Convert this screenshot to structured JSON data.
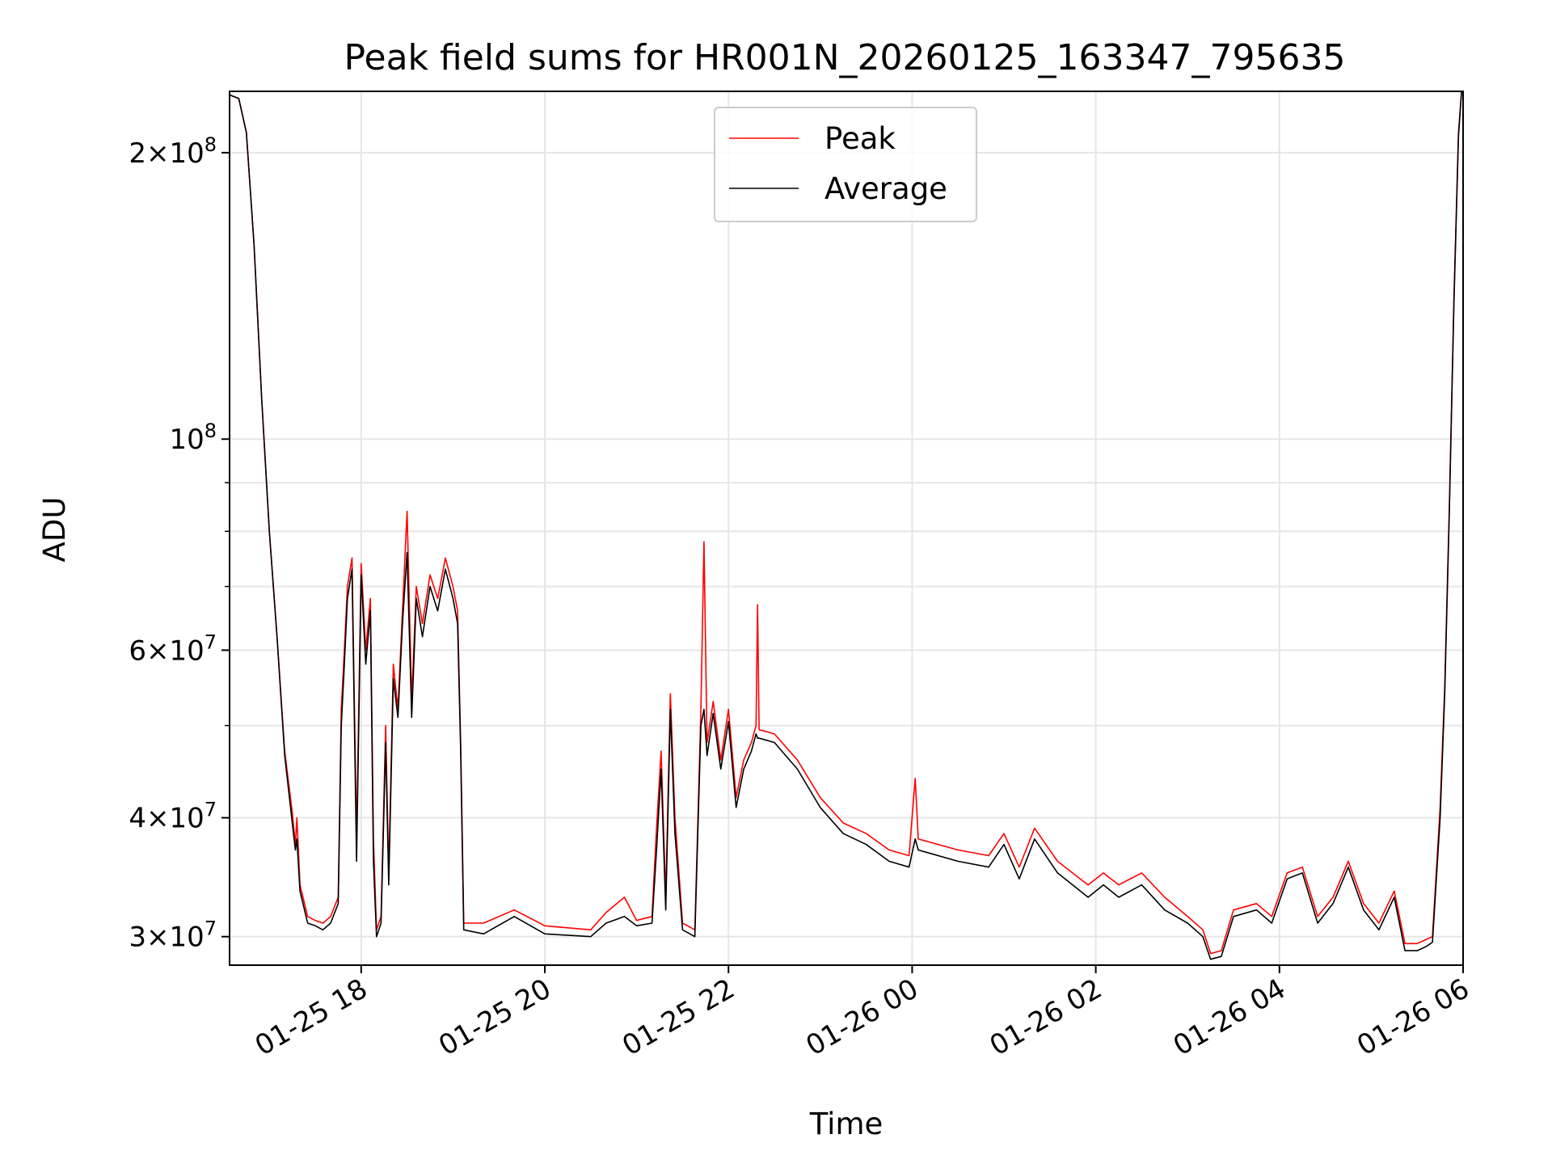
{
  "chart_data": {
    "type": "line",
    "title": "Peak field sums for HR001N_20260125_163347_795635",
    "xlabel": "Time",
    "ylabel": "ADU",
    "yscale": "log",
    "ylim": [
      28000000,
      232000000
    ],
    "xlim": [
      "2026-01-25 16:34",
      "2026-01-26 06:00"
    ],
    "grid": true,
    "legend_position": "upper center",
    "x_ticks": [
      {
        "t": "2026-01-25 18:00",
        "label": "01-25 18"
      },
      {
        "t": "2026-01-25 20:00",
        "label": "01-25 20"
      },
      {
        "t": "2026-01-25 22:00",
        "label": "01-25 22"
      },
      {
        "t": "2026-01-26 00:00",
        "label": "01-26 00"
      },
      {
        "t": "2026-01-26 02:00",
        "label": "01-26 02"
      },
      {
        "t": "2026-01-26 04:00",
        "label": "01-26 04"
      },
      {
        "t": "2026-01-26 06:00",
        "label": "01-26 06"
      }
    ],
    "y_ticks": [
      {
        "value": 30000000,
        "label_base": "3×10",
        "label_exp": "7"
      },
      {
        "value": 40000000,
        "label_base": "4×10",
        "label_exp": "7"
      },
      {
        "value": 60000000,
        "label_base": "6×10",
        "label_exp": "7"
      },
      {
        "value": 100000000,
        "label_base": "10",
        "label_exp": "8"
      },
      {
        "value": 200000000,
        "label_base": "2×10",
        "label_exp": "8"
      }
    ],
    "y_minor": [
      50000000,
      70000000,
      80000000,
      90000000
    ],
    "series": [
      {
        "name": "Peak",
        "color": "#ff0000",
        "points": [
          [
            "2026-01-25 16:34",
            230000000
          ],
          [
            "2026-01-25 16:40",
            228000000
          ],
          [
            "2026-01-25 16:45",
            210000000
          ],
          [
            "2026-01-25 16:50",
            160000000
          ],
          [
            "2026-01-25 16:55",
            110000000
          ],
          [
            "2026-01-25 17:00",
            80000000
          ],
          [
            "2026-01-25 17:05",
            62000000
          ],
          [
            "2026-01-25 17:10",
            47000000
          ],
          [
            "2026-01-25 17:15",
            40500000
          ],
          [
            "2026-01-25 17:17",
            37500000
          ],
          [
            "2026-01-25 17:18",
            40000000
          ],
          [
            "2026-01-25 17:20",
            34000000
          ],
          [
            "2026-01-25 17:25",
            31500000
          ],
          [
            "2026-01-25 17:30",
            31200000
          ],
          [
            "2026-01-25 17:35",
            31000000
          ],
          [
            "2026-01-25 17:40",
            31500000
          ],
          [
            "2026-01-25 17:45",
            33000000
          ],
          [
            "2026-01-25 17:47",
            52000000
          ],
          [
            "2026-01-25 17:49",
            60000000
          ],
          [
            "2026-01-25 17:51",
            70000000
          ],
          [
            "2026-01-25 17:54",
            75000000
          ],
          [
            "2026-01-25 17:57",
            38000000
          ],
          [
            "2026-01-25 18:00",
            74000000
          ],
          [
            "2026-01-25 18:03",
            60000000
          ],
          [
            "2026-01-25 18:06",
            68000000
          ],
          [
            "2026-01-25 18:08",
            38000000
          ],
          [
            "2026-01-25 18:10",
            30500000
          ],
          [
            "2026-01-25 18:13",
            31500000
          ],
          [
            "2026-01-25 18:16",
            50000000
          ],
          [
            "2026-01-25 18:18",
            35000000
          ],
          [
            "2026-01-25 18:21",
            58000000
          ],
          [
            "2026-01-25 18:24",
            52000000
          ],
          [
            "2026-01-25 18:27",
            66000000
          ],
          [
            "2026-01-25 18:30",
            84000000
          ],
          [
            "2026-01-25 18:33",
            53000000
          ],
          [
            "2026-01-25 18:36",
            70000000
          ],
          [
            "2026-01-25 18:40",
            64000000
          ],
          [
            "2026-01-25 18:45",
            72000000
          ],
          [
            "2026-01-25 18:50",
            68000000
          ],
          [
            "2026-01-25 18:55",
            75000000
          ],
          [
            "2026-01-25 19:00",
            70000000
          ],
          [
            "2026-01-25 19:03",
            66000000
          ],
          [
            "2026-01-25 19:05",
            48000000
          ],
          [
            "2026-01-25 19:07",
            31000000
          ],
          [
            "2026-01-25 19:20",
            31000000
          ],
          [
            "2026-01-25 19:40",
            32000000
          ],
          [
            "2026-01-25 20:00",
            30800000
          ],
          [
            "2026-01-25 20:30",
            30500000
          ],
          [
            "2026-01-25 20:40",
            31800000
          ],
          [
            "2026-01-25 20:52",
            33000000
          ],
          [
            "2026-01-25 21:00",
            31200000
          ],
          [
            "2026-01-25 21:10",
            31500000
          ],
          [
            "2026-01-25 21:13",
            39000000
          ],
          [
            "2026-01-25 21:16",
            47000000
          ],
          [
            "2026-01-25 21:19",
            33000000
          ],
          [
            "2026-01-25 21:22",
            54000000
          ],
          [
            "2026-01-25 21:25",
            40000000
          ],
          [
            "2026-01-25 21:30",
            31000000
          ],
          [
            "2026-01-25 21:38",
            30500000
          ],
          [
            "2026-01-25 21:42",
            52000000
          ],
          [
            "2026-01-25 21:44",
            78000000
          ],
          [
            "2026-01-25 21:46",
            48000000
          ],
          [
            "2026-01-25 21:50",
            53000000
          ],
          [
            "2026-01-25 21:55",
            46000000
          ],
          [
            "2026-01-25 22:00",
            52000000
          ],
          [
            "2026-01-25 22:05",
            42000000
          ],
          [
            "2026-01-25 22:10",
            46000000
          ],
          [
            "2026-01-25 22:15",
            48000000
          ],
          [
            "2026-01-25 22:18",
            50000000
          ],
          [
            "2026-01-25 22:19",
            67000000
          ],
          [
            "2026-01-25 22:20",
            49500000
          ],
          [
            "2026-01-25 22:30",
            49000000
          ],
          [
            "2026-01-25 22:45",
            46000000
          ],
          [
            "2026-01-25 23:00",
            42000000
          ],
          [
            "2026-01-25 23:15",
            39500000
          ],
          [
            "2026-01-25 23:30",
            38500000
          ],
          [
            "2026-01-25 23:45",
            37000000
          ],
          [
            "2026-01-25 23:58",
            36500000
          ],
          [
            "2026-01-26 00:02",
            44000000
          ],
          [
            "2026-01-26 00:04",
            38000000
          ],
          [
            "2026-01-26 00:30",
            37000000
          ],
          [
            "2026-01-26 00:50",
            36500000
          ],
          [
            "2026-01-26 01:00",
            38500000
          ],
          [
            "2026-01-26 01:10",
            35500000
          ],
          [
            "2026-01-26 01:20",
            39000000
          ],
          [
            "2026-01-26 01:35",
            36000000
          ],
          [
            "2026-01-26 01:55",
            34000000
          ],
          [
            "2026-01-26 02:05",
            35000000
          ],
          [
            "2026-01-26 02:15",
            34000000
          ],
          [
            "2026-01-26 02:30",
            35000000
          ],
          [
            "2026-01-26 02:45",
            33000000
          ],
          [
            "2026-01-26 03:00",
            31500000
          ],
          [
            "2026-01-26 03:10",
            30500000
          ],
          [
            "2026-01-26 03:15",
            28800000
          ],
          [
            "2026-01-26 03:22",
            29000000
          ],
          [
            "2026-01-26 03:30",
            32000000
          ],
          [
            "2026-01-26 03:45",
            32500000
          ],
          [
            "2026-01-26 03:55",
            31500000
          ],
          [
            "2026-01-26 04:05",
            35000000
          ],
          [
            "2026-01-26 04:15",
            35500000
          ],
          [
            "2026-01-26 04:25",
            31500000
          ],
          [
            "2026-01-26 04:35",
            33000000
          ],
          [
            "2026-01-26 04:45",
            36000000
          ],
          [
            "2026-01-26 04:55",
            32500000
          ],
          [
            "2026-01-26 05:05",
            31000000
          ],
          [
            "2026-01-26 05:15",
            33500000
          ],
          [
            "2026-01-26 05:22",
            29500000
          ],
          [
            "2026-01-26 05:30",
            29500000
          ],
          [
            "2026-01-26 05:36",
            29800000
          ],
          [
            "2026-01-26 05:40",
            30000000
          ],
          [
            "2026-01-26 05:45",
            41000000
          ],
          [
            "2026-01-26 05:48",
            55000000
          ],
          [
            "2026-01-26 05:51",
            85000000
          ],
          [
            "2026-01-26 05:54",
            140000000
          ],
          [
            "2026-01-26 05:57",
            210000000
          ],
          [
            "2026-01-26 05:59",
            232000000
          ]
        ]
      },
      {
        "name": "Average",
        "color": "#000000",
        "points": [
          [
            "2026-01-25 16:34",
            230000000
          ],
          [
            "2026-01-25 16:40",
            228000000
          ],
          [
            "2026-01-25 16:45",
            210000000
          ],
          [
            "2026-01-25 16:50",
            160000000
          ],
          [
            "2026-01-25 16:55",
            110000000
          ],
          [
            "2026-01-25 17:00",
            80000000
          ],
          [
            "2026-01-25 17:05",
            62000000
          ],
          [
            "2026-01-25 17:10",
            46500000
          ],
          [
            "2026-01-25 17:15",
            39500000
          ],
          [
            "2026-01-25 17:17",
            37000000
          ],
          [
            "2026-01-25 17:18",
            38000000
          ],
          [
            "2026-01-25 17:20",
            33500000
          ],
          [
            "2026-01-25 17:25",
            31000000
          ],
          [
            "2026-01-25 17:30",
            30800000
          ],
          [
            "2026-01-25 17:35",
            30500000
          ],
          [
            "2026-01-25 17:40",
            31000000
          ],
          [
            "2026-01-25 17:45",
            32500000
          ],
          [
            "2026-01-25 17:47",
            50000000
          ],
          [
            "2026-01-25 17:49",
            58000000
          ],
          [
            "2026-01-25 17:51",
            68000000
          ],
          [
            "2026-01-25 17:54",
            73000000
          ],
          [
            "2026-01-25 17:57",
            36000000
          ],
          [
            "2026-01-25 18:00",
            72000000
          ],
          [
            "2026-01-25 18:03",
            58000000
          ],
          [
            "2026-01-25 18:06",
            66000000
          ],
          [
            "2026-01-25 18:08",
            36000000
          ],
          [
            "2026-01-25 18:10",
            30000000
          ],
          [
            "2026-01-25 18:13",
            31000000
          ],
          [
            "2026-01-25 18:16",
            48000000
          ],
          [
            "2026-01-25 18:18",
            34000000
          ],
          [
            "2026-01-25 18:21",
            56000000
          ],
          [
            "2026-01-25 18:24",
            51000000
          ],
          [
            "2026-01-25 18:27",
            64000000
          ],
          [
            "2026-01-25 18:30",
            76000000
          ],
          [
            "2026-01-25 18:33",
            51000000
          ],
          [
            "2026-01-25 18:36",
            68000000
          ],
          [
            "2026-01-25 18:40",
            62000000
          ],
          [
            "2026-01-25 18:45",
            70000000
          ],
          [
            "2026-01-25 18:50",
            66000000
          ],
          [
            "2026-01-25 18:55",
            73000000
          ],
          [
            "2026-01-25 19:00",
            68000000
          ],
          [
            "2026-01-25 19:03",
            64000000
          ],
          [
            "2026-01-25 19:05",
            47000000
          ],
          [
            "2026-01-25 19:07",
            30500000
          ],
          [
            "2026-01-25 19:20",
            30200000
          ],
          [
            "2026-01-25 19:40",
            31500000
          ],
          [
            "2026-01-25 20:00",
            30200000
          ],
          [
            "2026-01-25 20:30",
            30000000
          ],
          [
            "2026-01-25 20:40",
            31000000
          ],
          [
            "2026-01-25 20:52",
            31500000
          ],
          [
            "2026-01-25 21:00",
            30800000
          ],
          [
            "2026-01-25 21:10",
            31000000
          ],
          [
            "2026-01-25 21:13",
            37000000
          ],
          [
            "2026-01-25 21:16",
            45000000
          ],
          [
            "2026-01-25 21:19",
            32000000
          ],
          [
            "2026-01-25 21:22",
            52000000
          ],
          [
            "2026-01-25 21:25",
            38500000
          ],
          [
            "2026-01-25 21:30",
            30500000
          ],
          [
            "2026-01-25 21:38",
            30000000
          ],
          [
            "2026-01-25 21:42",
            50000000
          ],
          [
            "2026-01-25 21:44",
            52000000
          ],
          [
            "2026-01-25 21:46",
            46500000
          ],
          [
            "2026-01-25 21:50",
            51500000
          ],
          [
            "2026-01-25 21:55",
            45000000
          ],
          [
            "2026-01-25 22:00",
            50500000
          ],
          [
            "2026-01-25 22:05",
            41000000
          ],
          [
            "2026-01-25 22:10",
            45000000
          ],
          [
            "2026-01-25 22:15",
            47000000
          ],
          [
            "2026-01-25 22:18",
            49000000
          ],
          [
            "2026-01-25 22:19",
            48500000
          ],
          [
            "2026-01-25 22:20",
            48500000
          ],
          [
            "2026-01-25 22:30",
            48000000
          ],
          [
            "2026-01-25 22:45",
            45000000
          ],
          [
            "2026-01-25 23:00",
            41000000
          ],
          [
            "2026-01-25 23:15",
            38500000
          ],
          [
            "2026-01-25 23:30",
            37500000
          ],
          [
            "2026-01-25 23:45",
            36000000
          ],
          [
            "2026-01-25 23:58",
            35500000
          ],
          [
            "2026-01-26 00:02",
            38000000
          ],
          [
            "2026-01-26 00:04",
            37000000
          ],
          [
            "2026-01-26 00:30",
            36000000
          ],
          [
            "2026-01-26 00:50",
            35500000
          ],
          [
            "2026-01-26 01:00",
            37500000
          ],
          [
            "2026-01-26 01:10",
            34500000
          ],
          [
            "2026-01-26 01:20",
            38000000
          ],
          [
            "2026-01-26 01:35",
            35000000
          ],
          [
            "2026-01-26 01:55",
            33000000
          ],
          [
            "2026-01-26 02:05",
            34000000
          ],
          [
            "2026-01-26 02:15",
            33000000
          ],
          [
            "2026-01-26 02:30",
            34000000
          ],
          [
            "2026-01-26 02:45",
            32000000
          ],
          [
            "2026-01-26 03:00",
            31000000
          ],
          [
            "2026-01-26 03:10",
            30000000
          ],
          [
            "2026-01-26 03:15",
            28400000
          ],
          [
            "2026-01-26 03:22",
            28600000
          ],
          [
            "2026-01-26 03:30",
            31500000
          ],
          [
            "2026-01-26 03:45",
            32000000
          ],
          [
            "2026-01-26 03:55",
            31000000
          ],
          [
            "2026-01-26 04:05",
            34500000
          ],
          [
            "2026-01-26 04:15",
            35000000
          ],
          [
            "2026-01-26 04:25",
            31000000
          ],
          [
            "2026-01-26 04:35",
            32500000
          ],
          [
            "2026-01-26 04:45",
            35500000
          ],
          [
            "2026-01-26 04:55",
            32000000
          ],
          [
            "2026-01-26 05:05",
            30500000
          ],
          [
            "2026-01-26 05:15",
            33000000
          ],
          [
            "2026-01-26 05:22",
            29000000
          ],
          [
            "2026-01-26 05:30",
            29000000
          ],
          [
            "2026-01-26 05:36",
            29300000
          ],
          [
            "2026-01-26 05:40",
            29600000
          ],
          [
            "2026-01-26 05:45",
            40000000
          ],
          [
            "2026-01-26 05:48",
            54000000
          ],
          [
            "2026-01-26 05:51",
            84000000
          ],
          [
            "2026-01-26 05:54",
            138000000
          ],
          [
            "2026-01-26 05:57",
            208000000
          ],
          [
            "2026-01-26 05:59",
            232000000
          ]
        ]
      }
    ]
  }
}
